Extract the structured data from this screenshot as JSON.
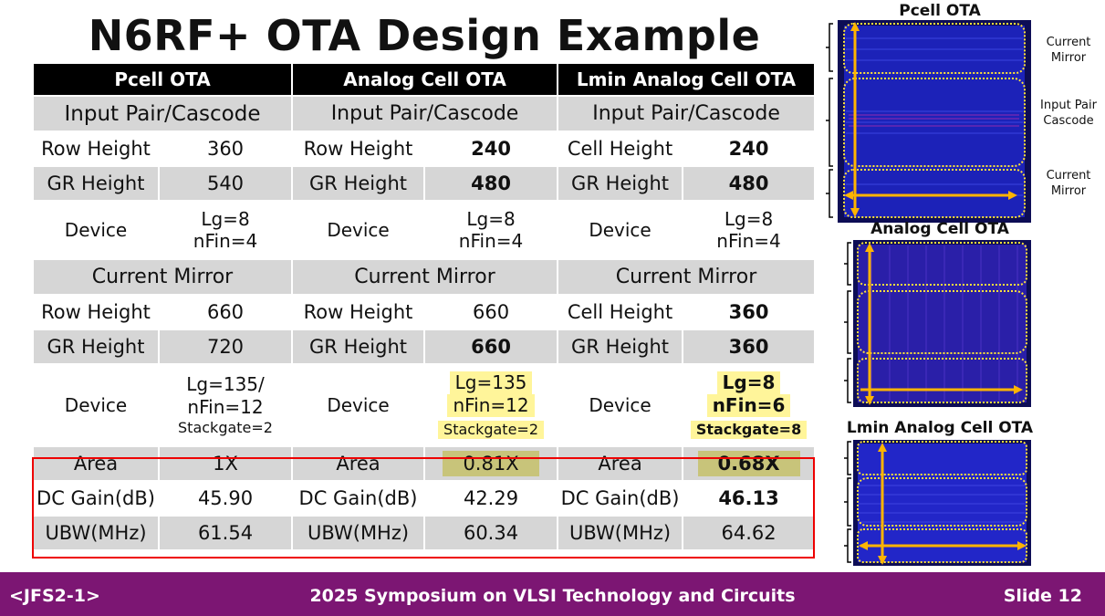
{
  "title": "N6RF+ OTA Design Example",
  "table": {
    "headers": [
      "Pcell OTA",
      "Analog Cell OTA",
      "Lmin Analog Cell OTA"
    ],
    "section1": "Input Pair/Cascode",
    "section2": "Current Mirror",
    "ip_rows": [
      [
        "Row Height",
        "360",
        "Row Height",
        "240",
        "Cell Height",
        "240"
      ],
      [
        "GR Height",
        "540",
        "GR Height",
        "480",
        "GR Height",
        "480"
      ]
    ],
    "ip_device": {
      "label": "Device",
      "pcell": [
        "Lg=8",
        "nFin=4"
      ],
      "analog": [
        "Lg=8",
        "nFin=4"
      ],
      "lmin": [
        "Lg=8",
        "nFin=4"
      ]
    },
    "cm_rows": [
      [
        "Row Height",
        "660",
        "Row Height",
        "660",
        "Cell Height",
        "360"
      ],
      [
        "GR Height",
        "720",
        "GR Height",
        "660",
        "GR Height",
        "360"
      ]
    ],
    "cm_device": {
      "label": "Device",
      "pcell": [
        "Lg=135/",
        "nFin=12",
        "Stackgate=2"
      ],
      "analog": [
        "Lg=135",
        "nFin=12",
        "Stackgate=2"
      ],
      "lmin": [
        "Lg=8",
        "nFin=6",
        "Stackgate=8"
      ]
    },
    "results": [
      [
        "Area",
        "1X",
        "Area",
        "0.81X",
        "Area",
        "0.68X"
      ],
      [
        "DC Gain(dB)",
        "45.90",
        "DC Gain(dB)",
        "42.29",
        "DC Gain(dB)",
        "46.13"
      ],
      [
        "UBW(MHz)",
        "61.54",
        "UBW(MHz)",
        "60.34",
        "UBW(MHz)",
        "64.62"
      ]
    ]
  },
  "side": {
    "pcell_title": "Pcell OTA",
    "analog_title": "Analog Cell OTA",
    "lmin_title": "Lmin Analog Cell OTA",
    "notes": [
      "Current",
      "Mirror",
      "Input Pair",
      "Cascode",
      "Current",
      "Mirror"
    ]
  },
  "footer": {
    "left": "<JFS2-1>",
    "center": "2025 Symposium on VLSI Technology and Circuits",
    "right": "Slide 12"
  },
  "colors": {
    "accent_blue": "#1a21d8",
    "footer_purple": "#7c1673",
    "highlight_yellow": "#fff59a",
    "result_box_red": "#e00000"
  }
}
